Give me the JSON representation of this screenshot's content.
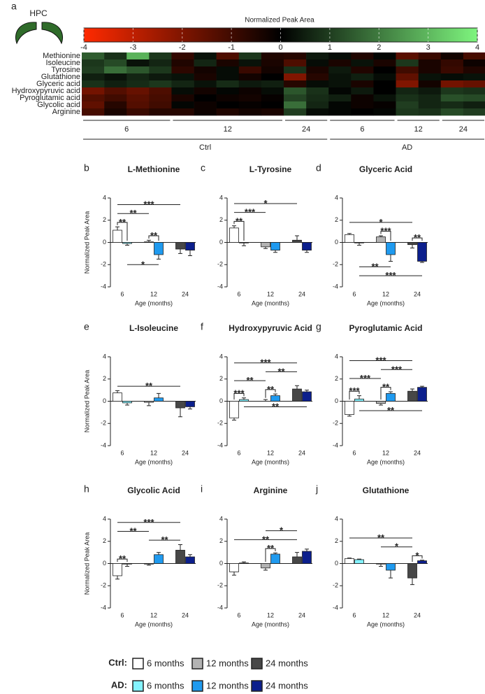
{
  "chart_data": [
    {
      "type": "heatmap",
      "letter": "a",
      "region": "HPC",
      "rows": [
        "Methionine",
        "Isoleucine",
        "Tyrosine",
        "Glutathione",
        "Glyceric acid",
        "Hydroxypyruvic acid",
        "Pyroglutamic acid",
        "Glycolic acid",
        "Arginine"
      ],
      "conditions": [
        {
          "name": "Ctrl",
          "groups": [
            "6",
            "12",
            "24"
          ]
        },
        {
          "name": "AD",
          "groups": [
            "6",
            "12",
            "24"
          ]
        }
      ],
      "values": [
        [
          [
            [
              1.5,
              0.8,
              2.9,
              0.9
            ],
            [
              -0.8,
              0.3,
              -1.2,
              0.9,
              -0.5
            ],
            [
              -0.6,
              0.4
            ]
          ],
          [
            [
              0.2,
              -0.5,
              0.1
            ],
            [
              -1.4,
              -0.9
            ],
            [
              -0.3,
              -1.1
            ]
          ]
        ],
        [
          [
            [
              0.9,
              1.2,
              0.3,
              0.6
            ],
            [
              -0.5,
              0.6,
              -0.4,
              0.3,
              -0.4
            ],
            [
              -1.2,
              0.2
            ]
          ],
          [
            [
              -0.4,
              0.3,
              -0.4
            ],
            [
              0.9,
              -0.4
            ],
            [
              -0.8,
              -0.2
            ]
          ]
        ],
        [
          [
            [
              1.0,
              1.8,
              1.4,
              0.9
            ],
            [
              -0.7,
              -0.3,
              0.2,
              -0.9,
              -0.3
            ],
            [
              0.8,
              -0.4
            ]
          ],
          [
            [
              0.4,
              -0.5,
              0.0
            ],
            [
              -1.0,
              -0.4
            ],
            [
              -0.9,
              -0.5
            ]
          ]
        ],
        [
          [
            [
              0.5,
              0.3,
              0.6,
              0.4
            ],
            [
              0.3,
              -0.4,
              0.2,
              -0.3,
              0.0
            ],
            [
              -2.0,
              -0.6
            ]
          ],
          [
            [
              0.3,
              0.5,
              0.2
            ],
            [
              -1.5,
              0.3
            ],
            [
              0.2,
              0.3
            ]
          ]
        ],
        [
          [
            [
              0.8,
              0.5,
              0.7,
              0.9
            ],
            [
              0.6,
              0.3,
              0.7,
              0.4,
              0.5
            ],
            [
              -0.6,
              0.2
            ]
          ],
          [
            [
              0.3,
              -0.4,
              0.0
            ],
            [
              -2.0,
              -0.3
            ],
            [
              -1.8,
              -1.6
            ]
          ]
        ],
        [
          [
            [
              -1.8,
              -1.3,
              -1.6,
              -1.2
            ],
            [
              0.2,
              -0.3,
              0.1,
              -0.2,
              0.2
            ],
            [
              1.4,
              0.8
            ]
          ],
          [
            [
              0.1,
              0.4,
              0.0
            ],
            [
              0.6,
              0.4
            ],
            [
              0.9,
              0.8
            ]
          ]
        ],
        [
          [
            [
              -1.3,
              -1.0,
              -1.4,
              -1.1
            ],
            [
              -0.4,
              0.0,
              -0.2,
              -0.3,
              -0.1
            ],
            [
              1.1,
              0.7
            ]
          ],
          [
            [
              0.5,
              -0.2,
              0.3
            ],
            [
              0.8,
              0.6
            ],
            [
              1.3,
              1.2
            ]
          ]
        ],
        [
          [
            [
              -1.5,
              -0.6,
              -1.3,
              -1.0
            ],
            [
              0.1,
              -0.2,
              0.0,
              -0.1,
              0.0
            ],
            [
              1.8,
              0.6
            ]
          ],
          [
            [
              0.1,
              -0.2,
              -0.1
            ],
            [
              1.0,
              0.6
            ],
            [
              0.7,
              0.5
            ]
          ]
        ],
        [
          [
            [
              -1.1,
              -0.4,
              -0.9,
              -0.6
            ],
            [
              -0.6,
              -0.2,
              -0.5,
              -0.3,
              -0.4
            ],
            [
              1.0,
              0.2
            ]
          ],
          [
            [
              0.1,
              0.0,
              0.1
            ],
            [
              0.9,
              0.8
            ],
            [
              1.2,
              1.0
            ]
          ]
        ]
      ],
      "colorbar": {
        "label": "Normalized Peak Area",
        "lim": [
          -4,
          4
        ],
        "ticks": [
          -4,
          -3,
          -2,
          -1,
          0,
          1,
          2,
          3,
          4
        ],
        "colors": [
          "#ff2a00",
          "#000000",
          "#7ef57e"
        ]
      }
    },
    {
      "type": "bar",
      "letter": "b",
      "title": "L-Methionine",
      "ylabel": "Normalized Peak Area",
      "xlabel": "Age (months)",
      "categories": [
        6,
        12,
        24
      ],
      "ylim": [
        -4,
        4
      ],
      "yticks": [
        -4,
        -2,
        0,
        2,
        4
      ],
      "series": [
        {
          "values": [
            1.1,
            0.05,
            -0.6
          ],
          "errors": [
            0.3,
            0.15,
            0.4
          ]
        },
        {
          "values": [
            -0.1,
            -1.1,
            -0.7
          ],
          "errors": [
            0.15,
            0.4,
            0.5
          ]
        }
      ],
      "significance": [
        {
          "bars": [
            0,
            1
          ],
          "label": "**"
        },
        {
          "bars": [
            2,
            3
          ],
          "label": "**"
        },
        {
          "bars": [
            0,
            2
          ],
          "label": "**"
        },
        {
          "bars": [
            0,
            4
          ],
          "label": "***"
        },
        {
          "bars": [
            1,
            3
          ],
          "label": "*",
          "side": "below"
        }
      ]
    },
    {
      "type": "bar",
      "letter": "c",
      "title": "L-Tyrosine",
      "xlabel": "Age (months)",
      "categories": [
        6,
        12,
        24
      ],
      "ylim": [
        -4,
        4
      ],
      "yticks": [
        -4,
        -2,
        0,
        2,
        4
      ],
      "series": [
        {
          "values": [
            1.3,
            -0.4,
            0.2
          ],
          "errors": [
            0.2,
            0.15,
            0.4
          ]
        },
        {
          "values": [
            -0.05,
            -0.7,
            -0.7
          ],
          "errors": [
            0.25,
            0.2,
            0.2
          ]
        }
      ],
      "significance": [
        {
          "bars": [
            0,
            1
          ],
          "label": "**"
        },
        {
          "bars": [
            0,
            2
          ],
          "label": "***"
        },
        {
          "bars": [
            0,
            4
          ],
          "label": "*"
        }
      ]
    },
    {
      "type": "bar",
      "letter": "d",
      "title": "Glyceric Acid",
      "xlabel": "Age (months)",
      "categories": [
        6,
        12,
        24
      ],
      "ylim": [
        -4,
        4
      ],
      "yticks": [
        -4,
        -2,
        0,
        2,
        4
      ],
      "series": [
        {
          "values": [
            0.7,
            0.5,
            -0.2
          ],
          "errors": [
            0.1,
            0.1,
            0.3
          ]
        },
        {
          "values": [
            -0.05,
            -1.1,
            -1.7
          ],
          "errors": [
            0.2,
            0.6,
            0.1
          ]
        }
      ],
      "significance": [
        {
          "bars": [
            2,
            3
          ],
          "label": "***"
        },
        {
          "bars": [
            4,
            5
          ],
          "label": "**"
        },
        {
          "bars": [
            0,
            4
          ],
          "label": "*"
        },
        {
          "bars": [
            1,
            3
          ],
          "label": "**",
          "side": "below"
        },
        {
          "bars": [
            1,
            5
          ],
          "label": "***",
          "side": "below"
        }
      ]
    },
    {
      "type": "bar",
      "letter": "e",
      "title": "L-Isoleucine",
      "ylabel": "Normalized Peak Area",
      "xlabel": "Age (months)",
      "categories": [
        6,
        12,
        24
      ],
      "ylim": [
        -4,
        4
      ],
      "yticks": [
        -4,
        -2,
        0,
        2,
        4
      ],
      "series": [
        {
          "values": [
            0.75,
            -0.1,
            -0.6
          ],
          "errors": [
            0.2,
            0.3,
            0.8
          ]
        },
        {
          "values": [
            -0.15,
            0.3,
            -0.5
          ],
          "errors": [
            0.2,
            0.4,
            0.2
          ]
        }
      ],
      "significance": [
        {
          "bars": [
            0,
            4
          ],
          "label": "**"
        }
      ]
    },
    {
      "type": "bar",
      "letter": "f",
      "title": "Hydroxypyruvic Acid",
      "xlabel": "Age (months)",
      "categories": [
        6,
        12,
        24
      ],
      "ylim": [
        -4,
        4
      ],
      "yticks": [
        -4,
        -2,
        0,
        2,
        4
      ],
      "series": [
        {
          "values": [
            -1.5,
            0,
            1.1
          ],
          "errors": [
            0.2,
            0.15,
            0.3
          ]
        },
        {
          "values": [
            0.15,
            0.5,
            0.85
          ],
          "errors": [
            0.15,
            0.15,
            0.15
          ]
        }
      ],
      "significance": [
        {
          "bars": [
            0,
            1
          ],
          "label": "***"
        },
        {
          "bars": [
            2,
            3
          ],
          "label": "**"
        },
        {
          "bars": [
            0,
            2
          ],
          "label": "**"
        },
        {
          "bars": [
            2,
            4
          ],
          "label": "**"
        },
        {
          "bars": [
            0,
            4
          ],
          "label": "***"
        },
        {
          "bars": [
            1,
            5
          ],
          "label": "**",
          "side": "below"
        }
      ]
    },
    {
      "type": "bar",
      "letter": "g",
      "title": "Pyroglutamic Acid",
      "xlabel": "Age (months)",
      "categories": [
        6,
        12,
        24
      ],
      "ylim": [
        -4,
        4
      ],
      "yticks": [
        -4,
        -2,
        0,
        2,
        4
      ],
      "series": [
        {
          "values": [
            -1.2,
            -0.2,
            0.9
          ],
          "errors": [
            0.15,
            0.15,
            0.2
          ]
        },
        {
          "values": [
            0.2,
            0.7,
            1.25
          ],
          "errors": [
            0.3,
            0.15,
            0.1
          ]
        }
      ],
      "significance": [
        {
          "bars": [
            0,
            1
          ],
          "label": "***"
        },
        {
          "bars": [
            2,
            3
          ],
          "label": "**"
        },
        {
          "bars": [
            0,
            2
          ],
          "label": "***"
        },
        {
          "bars": [
            2,
            4
          ],
          "label": "***"
        },
        {
          "bars": [
            0,
            4
          ],
          "label": "***"
        },
        {
          "bars": [
            1,
            5
          ],
          "label": "**",
          "side": "below"
        }
      ]
    },
    {
      "type": "bar",
      "letter": "h",
      "title": "Glycolic Acid",
      "ylabel": "Normalized Peak Area",
      "xlabel": "Age (months)",
      "categories": [
        6,
        12,
        24
      ],
      "ylim": [
        -4,
        4
      ],
      "yticks": [
        -4,
        -2,
        0,
        2,
        4
      ],
      "series": [
        {
          "values": [
            -1.1,
            -0.05,
            1.2
          ],
          "errors": [
            0.3,
            0.1,
            0.5
          ]
        },
        {
          "values": [
            -0.05,
            0.8,
            0.6
          ],
          "errors": [
            0.2,
            0.2,
            0.2
          ]
        }
      ],
      "significance": [
        {
          "bars": [
            0,
            1
          ],
          "label": "**"
        },
        {
          "bars": [
            2,
            4
          ],
          "label": "**"
        },
        {
          "bars": [
            0,
            2
          ],
          "label": "**"
        },
        {
          "bars": [
            0,
            4
          ],
          "label": "***"
        }
      ]
    },
    {
      "type": "bar",
      "letter": "i",
      "title": "Arginine",
      "xlabel": "Age (months)",
      "categories": [
        6,
        12,
        24
      ],
      "ylim": [
        -4,
        4
      ],
      "yticks": [
        -4,
        -2,
        0,
        2,
        4
      ],
      "series": [
        {
          "values": [
            -0.75,
            -0.4,
            0.6
          ],
          "errors": [
            0.3,
            0.2,
            0.4
          ]
        },
        {
          "values": [
            0.05,
            0.85,
            1.1
          ],
          "errors": [
            0.1,
            0.1,
            0.2
          ]
        }
      ],
      "significance": [
        {
          "bars": [
            2,
            3
          ],
          "label": "**"
        },
        {
          "bars": [
            0,
            4
          ],
          "label": "**"
        },
        {
          "bars": [
            2,
            4
          ],
          "label": "*"
        }
      ]
    },
    {
      "type": "bar",
      "letter": "j",
      "title": "Glutathione",
      "xlabel": "Age (months)",
      "categories": [
        6,
        12,
        24
      ],
      "ylim": [
        -4,
        4
      ],
      "yticks": [
        -4,
        -2,
        0,
        2,
        4
      ],
      "series": [
        {
          "values": [
            0.45,
            -0.05,
            -1.3
          ],
          "errors": [
            0.05,
            0.2,
            0.6
          ]
        },
        {
          "values": [
            0.35,
            -0.6,
            0.25
          ],
          "errors": [
            0.05,
            0.7,
            0.05
          ]
        }
      ],
      "significance": [
        {
          "bars": [
            4,
            5
          ],
          "label": "*"
        },
        {
          "bars": [
            2,
            4
          ],
          "label": "*"
        },
        {
          "bars": [
            0,
            4
          ],
          "label": "**"
        }
      ]
    }
  ],
  "legend": {
    "groups": [
      {
        "name": "Ctrl:",
        "colors": [
          "#ffffff",
          "#b3b3b3",
          "#474747"
        ]
      },
      {
        "name": "AD:",
        "colors": [
          "#84f3ff",
          "#1f9aef",
          "#0c1f8c"
        ]
      }
    ],
    "labels": [
      "6 months",
      "12 months",
      "24 months"
    ]
  }
}
